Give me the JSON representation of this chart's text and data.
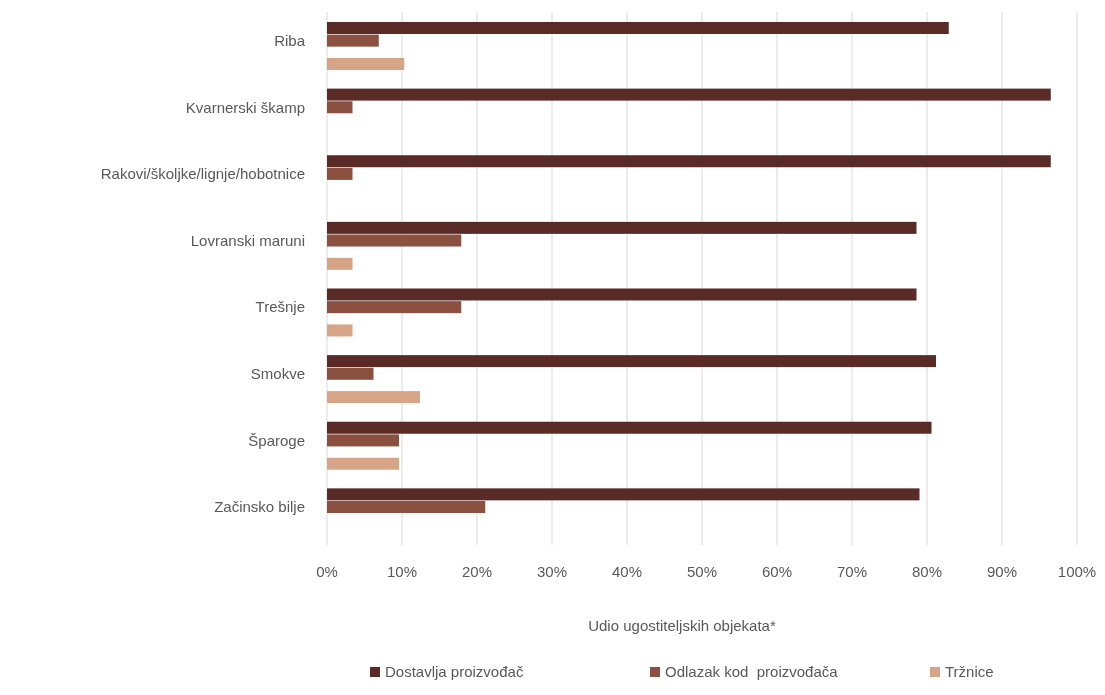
{
  "chart_data": {
    "type": "bar",
    "orientation": "horizontal",
    "xlabel": "Udio ugostiteljskih objekata*",
    "categories": [
      "Riba",
      "Kvarnerski škamp",
      "Rakovi/školjke/lignje/hobotnice",
      "Lovranski maruni",
      "Trešnje",
      "Smokve",
      "Šparoge",
      "Začinsko bilje"
    ],
    "series": [
      {
        "name": "Dostavlja proizvođač",
        "color": "#5a2a27",
        "values": [
          82.9,
          96.5,
          96.5,
          78.6,
          78.6,
          81.2,
          80.6,
          79.0
        ]
      },
      {
        "name": "Odlazak kod  proizvođača",
        "color": "#8b5040",
        "values": [
          6.9,
          3.4,
          3.4,
          17.9,
          17.9,
          6.2,
          9.6,
          21.1
        ]
      },
      {
        "name": "Tržnice",
        "color": "#d7a487",
        "values": [
          10.3,
          null,
          null,
          3.4,
          3.4,
          12.4,
          9.6,
          null
        ]
      }
    ],
    "xlim": [
      0,
      100
    ],
    "xticks": [
      {
        "value": 0,
        "label": "0%"
      },
      {
        "value": 10,
        "label": "10%"
      },
      {
        "value": 20,
        "label": "20%"
      },
      {
        "value": 30,
        "label": "30%"
      },
      {
        "value": 40,
        "label": "40%"
      },
      {
        "value": 50,
        "label": "50%"
      },
      {
        "value": 60,
        "label": "60%"
      },
      {
        "value": 70,
        "label": "70%"
      },
      {
        "value": 80,
        "label": "80%"
      },
      {
        "value": 90,
        "label": "90%"
      },
      {
        "value": 100,
        "label": "100%"
      }
    ],
    "grid": "x",
    "legend": "bottom"
  }
}
